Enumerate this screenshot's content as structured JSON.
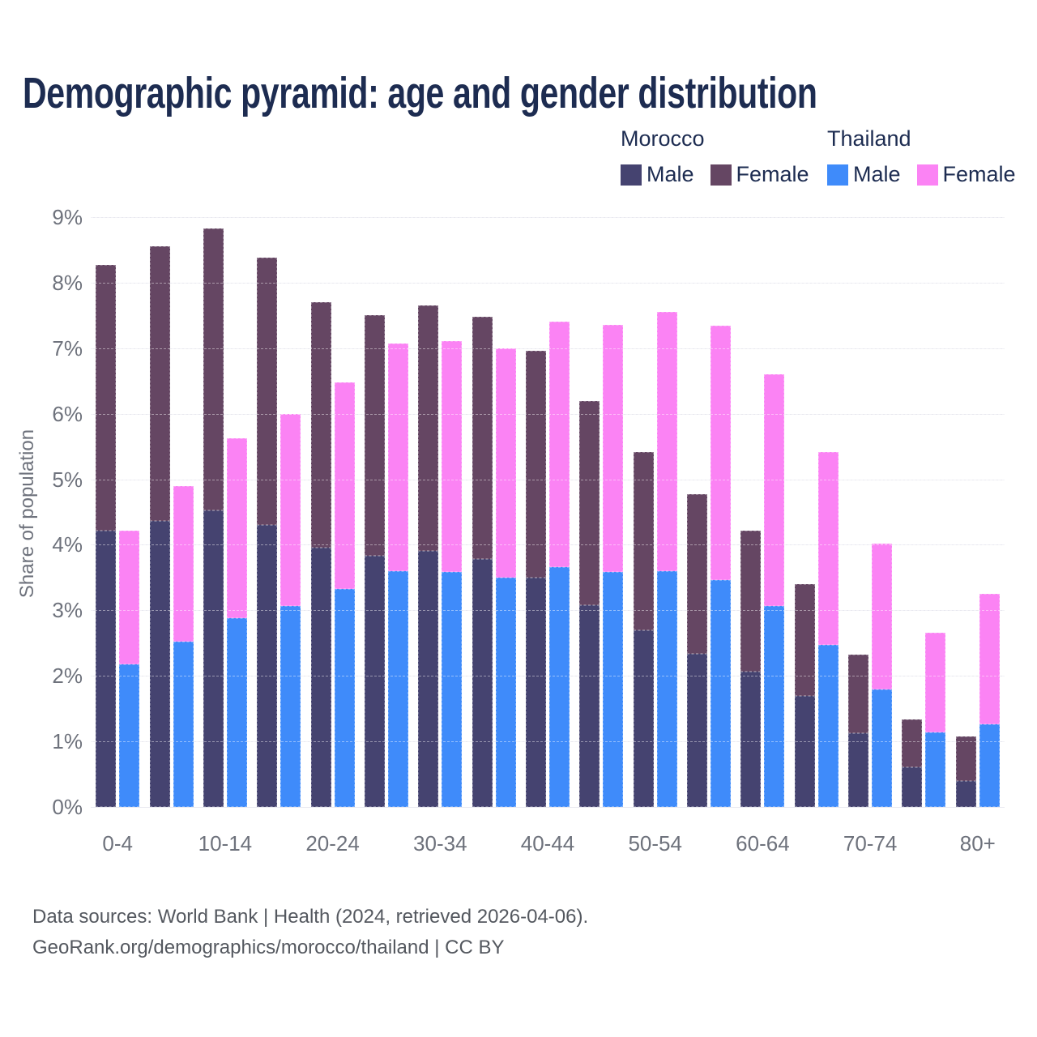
{
  "title": "Demographic pyramid: age and gender distribution",
  "legend": {
    "groups": [
      {
        "country": "Morocco",
        "items": [
          {
            "label": "Male",
            "color": "#454370"
          },
          {
            "label": "Female",
            "color": "#654663"
          }
        ]
      },
      {
        "country": "Thailand",
        "items": [
          {
            "label": "Male",
            "color": "#3f8bfa"
          },
          {
            "label": "Female",
            "color": "#fb83f4"
          }
        ]
      }
    ]
  },
  "chart_data": {
    "type": "bar",
    "stacked_pairs": "Two stacked bars per age group: Morocco (male+female) and Thailand (male+female), unit = % of total population",
    "title": "Demographic pyramid: age and gender distribution",
    "xlabel": "",
    "ylabel": "Share of population",
    "ylim": [
      0,
      9
    ],
    "grid": true,
    "legend_position": "top-right",
    "yticks": [
      "0%",
      "1%",
      "2%",
      "3%",
      "4%",
      "5%",
      "6%",
      "7%",
      "8%",
      "9%"
    ],
    "categories": [
      "0-4",
      "5-9",
      "10-14",
      "15-19",
      "20-24",
      "25-29",
      "30-34",
      "35-39",
      "40-44",
      "45-49",
      "50-54",
      "55-59",
      "60-64",
      "65-69",
      "70-74",
      "75-79",
      "80+"
    ],
    "x_ticks_shown": [
      "0-4",
      "10-14",
      "20-24",
      "30-34",
      "40-44",
      "50-54",
      "60-64",
      "70-74",
      "80+"
    ],
    "series": [
      {
        "name": "Morocco Male",
        "country": "Morocco",
        "color": "#454370",
        "values": [
          4.22,
          4.37,
          4.52,
          4.3,
          3.96,
          3.83,
          3.91,
          3.78,
          3.5,
          3.08,
          2.7,
          2.34,
          2.06,
          1.7,
          1.12,
          0.61,
          0.4
        ]
      },
      {
        "name": "Morocco Female",
        "country": "Morocco",
        "color": "#654663",
        "values": [
          4.05,
          4.19,
          4.31,
          4.08,
          3.74,
          3.68,
          3.74,
          3.7,
          3.46,
          3.12,
          2.71,
          2.43,
          2.15,
          1.7,
          1.2,
          0.73,
          0.67
        ]
      },
      {
        "name": "Thailand Male",
        "country": "Thailand",
        "color": "#3f8bfa",
        "values": [
          2.18,
          2.52,
          2.88,
          3.06,
          3.32,
          3.6,
          3.58,
          3.5,
          3.66,
          3.58,
          3.6,
          3.46,
          3.07,
          2.47,
          1.79,
          1.14,
          1.26
        ]
      },
      {
        "name": "Thailand Female",
        "country": "Thailand",
        "color": "#fb83f4",
        "values": [
          2.04,
          2.38,
          2.74,
          2.94,
          3.16,
          3.47,
          3.53,
          3.5,
          3.75,
          3.78,
          3.95,
          3.88,
          3.53,
          2.94,
          2.23,
          1.52,
          1.99
        ]
      }
    ]
  },
  "footer": {
    "line1": "Data sources: World Bank | Health (2024, retrieved 2026-04-06).",
    "line2": "GeoRank.org/demographics/morocco/thailand | CC BY"
  }
}
